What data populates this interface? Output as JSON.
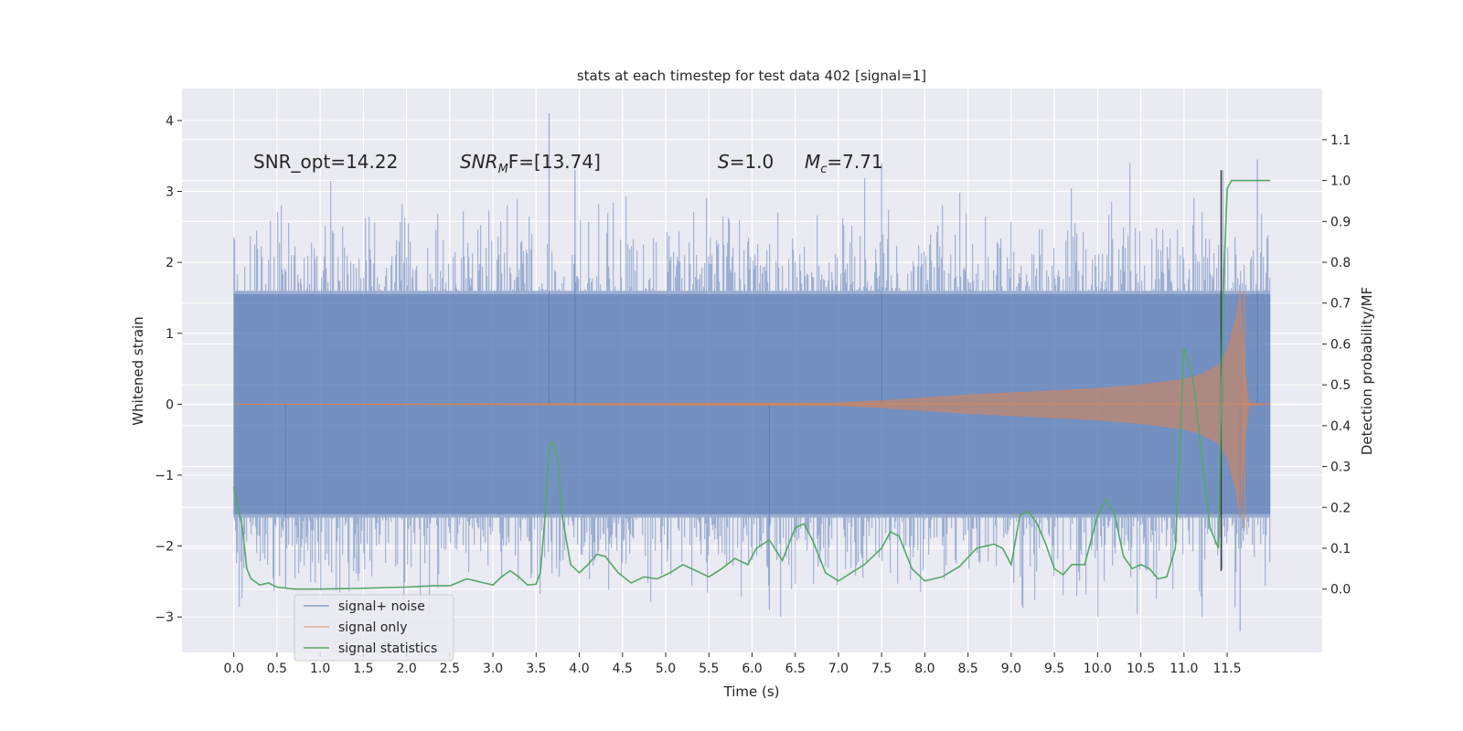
{
  "chart_data": {
    "type": "line",
    "title": "stats at each timestep for test data 402 [signal=1]",
    "xlabel": "Time (s)",
    "ylabel": "Whitened strain",
    "y2label": "Detection probability/MF",
    "xlim": [
      -0.6,
      12.6
    ],
    "ylim": [
      -3.5,
      4.45
    ],
    "y2lim": [
      -0.155,
      1.225
    ],
    "x_ticks": [
      "0.0",
      "0.5",
      "1.0",
      "1.5",
      "2.0",
      "2.5",
      "3.0",
      "3.5",
      "4.0",
      "4.5",
      "5.0",
      "5.5",
      "6.0",
      "6.5",
      "7.0",
      "7.5",
      "8.0",
      "8.5",
      "9.0",
      "9.5",
      "10.0",
      "10.5",
      "11.0",
      "11.5"
    ],
    "y_ticks": [
      -3,
      -2,
      -1,
      0,
      1,
      2,
      3,
      4
    ],
    "y_tick_labels": [
      "−3",
      "−2",
      "−1",
      "0",
      "1",
      "2",
      "3",
      "4"
    ],
    "y2_ticks": [
      0.0,
      0.1,
      0.2,
      0.3,
      0.4,
      0.5,
      0.6,
      0.7,
      0.8,
      0.9,
      1.0,
      1.1
    ],
    "y2_tick_labels": [
      "0.0",
      "0.1",
      "0.2",
      "0.3",
      "0.4",
      "0.5",
      "0.6",
      "0.7",
      "0.8",
      "0.9",
      "1.0",
      "1.1"
    ],
    "grid": true,
    "legend_placement": "lower-left",
    "annotations": [
      {
        "text": "SNR_opt=14.22",
        "x": 0.2,
        "y": 3.35
      },
      {
        "html": "SNR_MF=[13.74]",
        "x": 2.6,
        "y": 3.35
      },
      {
        "html": "S=1.0",
        "x": 5.6,
        "y": 3.35
      },
      {
        "html": "M_c=7.71",
        "x": 6.6,
        "y": 3.35
      }
    ],
    "annotation_parts": {
      "snr_mf_main": "SNR",
      "snr_mf_sub": "M",
      "snr_mf_rest": "F=[13.74]",
      "s_main": "S",
      "s_rest": "=1.0",
      "mc_main": "M",
      "mc_sub": "c",
      "mc_rest": "=7.71"
    },
    "series": [
      {
        "name": "signal+ noise",
        "color": "#4c72b0",
        "axis": "left",
        "style": "dense noise band",
        "x_range": [
          0.0,
          12.0
        ],
        "envelope": {
          "typical_abs": 1.6,
          "max": 4.1,
          "min": -3.2
        }
      },
      {
        "name": "signal only",
        "color": "#dd8452",
        "axis": "left",
        "style": "chirp",
        "x": [
          0.0,
          7.0,
          7.5,
          8.0,
          8.5,
          9.0,
          9.5,
          10.0,
          10.5,
          11.0,
          11.2,
          11.4,
          11.5,
          11.6,
          11.65,
          11.7,
          11.75,
          12.0
        ],
        "amplitude": [
          0.0,
          0.02,
          0.05,
          0.09,
          0.13,
          0.16,
          0.19,
          0.22,
          0.27,
          0.35,
          0.42,
          0.55,
          0.75,
          1.2,
          1.6,
          0.5,
          0.02,
          0.0
        ]
      },
      {
        "name": "signal statistics",
        "color": "#55a868",
        "axis": "right",
        "x": [
          0.0,
          0.1,
          0.15,
          0.2,
          0.3,
          0.4,
          0.5,
          0.7,
          1.0,
          1.5,
          2.0,
          2.3,
          2.5,
          2.7,
          2.9,
          3.0,
          3.1,
          3.2,
          3.3,
          3.4,
          3.5,
          3.55,
          3.6,
          3.65,
          3.7,
          3.75,
          3.8,
          3.9,
          4.0,
          4.1,
          4.2,
          4.3,
          4.45,
          4.6,
          4.75,
          4.9,
          5.05,
          5.2,
          5.35,
          5.5,
          5.65,
          5.8,
          5.95,
          6.05,
          6.2,
          6.35,
          6.5,
          6.6,
          6.7,
          6.85,
          7.0,
          7.15,
          7.3,
          7.5,
          7.6,
          7.7,
          7.85,
          8.0,
          8.2,
          8.4,
          8.6,
          8.8,
          8.9,
          9.0,
          9.1,
          9.2,
          9.3,
          9.4,
          9.5,
          9.6,
          9.7,
          9.85,
          10.0,
          10.1,
          10.2,
          10.3,
          10.4,
          10.5,
          10.6,
          10.7,
          10.8,
          10.9,
          11.0,
          11.1,
          11.2,
          11.3,
          11.4,
          11.45,
          11.5,
          11.55,
          11.6,
          11.7,
          11.8,
          11.9,
          12.0
        ],
        "values": [
          0.25,
          0.15,
          0.05,
          0.025,
          0.01,
          0.015,
          0.005,
          0.0,
          0.0,
          0.002,
          0.005,
          0.008,
          0.008,
          0.025,
          0.015,
          0.01,
          0.03,
          0.045,
          0.03,
          0.01,
          0.012,
          0.04,
          0.17,
          0.35,
          0.36,
          0.32,
          0.18,
          0.06,
          0.04,
          0.06,
          0.085,
          0.08,
          0.04,
          0.015,
          0.03,
          0.025,
          0.04,
          0.06,
          0.045,
          0.03,
          0.05,
          0.075,
          0.06,
          0.1,
          0.12,
          0.07,
          0.15,
          0.16,
          0.12,
          0.04,
          0.02,
          0.04,
          0.06,
          0.1,
          0.14,
          0.13,
          0.05,
          0.02,
          0.03,
          0.055,
          0.1,
          0.11,
          0.1,
          0.06,
          0.18,
          0.19,
          0.16,
          0.11,
          0.05,
          0.035,
          0.06,
          0.06,
          0.18,
          0.22,
          0.18,
          0.08,
          0.05,
          0.06,
          0.05,
          0.025,
          0.03,
          0.1,
          0.59,
          0.52,
          0.34,
          0.15,
          0.1,
          0.7,
          0.98,
          1.0,
          1.0,
          1.0,
          1.0,
          1.0,
          1.0
        ]
      },
      {
        "name": "",
        "color": "#333333",
        "axis": "left",
        "style": "vertical marker",
        "x": [
          11.43,
          11.43
        ],
        "values": [
          -2.35,
          3.3
        ]
      }
    ]
  }
}
